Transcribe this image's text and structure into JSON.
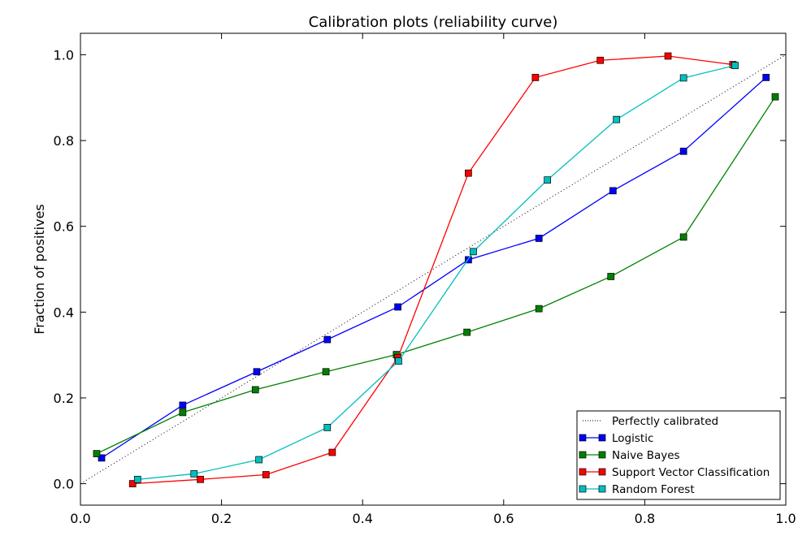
{
  "chart_data": {
    "type": "line",
    "title": "Calibration plots  (reliability curve)",
    "xlabel": "",
    "ylabel": "Fraction of positives",
    "xlim": [
      0.0,
      1.0
    ],
    "ylim": [
      -0.05,
      1.05
    ],
    "x_ticks": [
      "0.0",
      "0.2",
      "0.4",
      "0.6",
      "0.8",
      "1.0"
    ],
    "y_ticks": [
      "0.0",
      "0.2",
      "0.4",
      "0.6",
      "0.8",
      "1.0"
    ],
    "grid": false,
    "legend_position": "lower-right",
    "reference_line": {
      "name": "Perfectly calibrated",
      "x": [
        0.0,
        1.0
      ],
      "y": [
        0.0,
        1.0
      ],
      "color": "#000000",
      "style": "dotted"
    },
    "series": [
      {
        "name": "Logistic",
        "color": "#0000ff",
        "x": [
          0.03,
          0.145,
          0.25,
          0.35,
          0.45,
          0.55,
          0.65,
          0.755,
          0.855,
          0.972
        ],
        "y": [
          0.06,
          0.183,
          0.261,
          0.336,
          0.412,
          0.522,
          0.572,
          0.683,
          0.775,
          0.947
        ]
      },
      {
        "name": "Naive Bayes",
        "color": "#008000",
        "x": [
          0.023,
          0.145,
          0.248,
          0.348,
          0.448,
          0.548,
          0.65,
          0.752,
          0.855,
          0.985
        ],
        "y": [
          0.07,
          0.166,
          0.219,
          0.261,
          0.301,
          0.353,
          0.408,
          0.483,
          0.575,
          0.902
        ]
      },
      {
        "name": "Support Vector Classification",
        "color": "#ff0000",
        "x": [
          0.074,
          0.17,
          0.263,
          0.357,
          0.45,
          0.55,
          0.645,
          0.737,
          0.833,
          0.925
        ],
        "y": [
          0.0,
          0.01,
          0.021,
          0.073,
          0.294,
          0.724,
          0.947,
          0.987,
          0.997,
          0.977
        ]
      },
      {
        "name": "Random Forest",
        "color": "#00bfbf",
        "x": [
          0.081,
          0.161,
          0.253,
          0.35,
          0.451,
          0.557,
          0.662,
          0.76,
          0.855,
          0.928
        ],
        "y": [
          0.01,
          0.023,
          0.056,
          0.131,
          0.286,
          0.541,
          0.708,
          0.849,
          0.946,
          0.975
        ]
      }
    ]
  }
}
